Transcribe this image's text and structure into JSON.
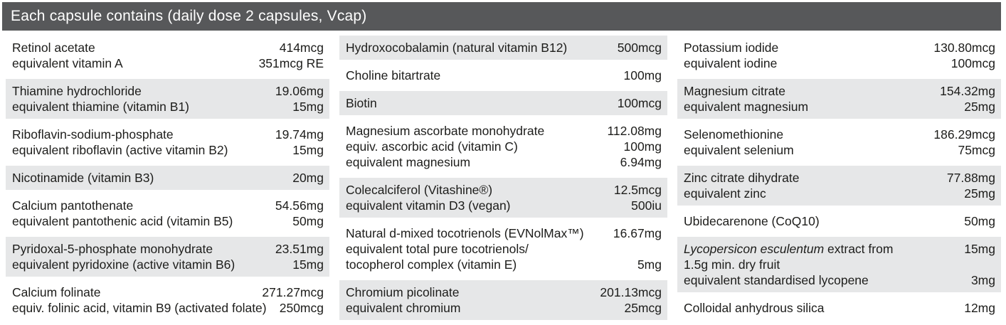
{
  "header": {
    "title": "Each capsule contains (daily dose 2 capsules, Vcap)"
  },
  "colors": {
    "header_bg": "#57585a",
    "header_text": "#ffffff",
    "stripe_bg": "#e6e7e8",
    "text": "#1d1d1b",
    "page_bg": "#ffffff"
  },
  "columns": [
    {
      "rows": [
        {
          "lines": [
            {
              "text": "Retinol acetate",
              "value": "414mcg"
            },
            {
              "text": "equivalent vitamin A",
              "value": "351mcg RE"
            }
          ]
        },
        {
          "lines": [
            {
              "text": "Thiamine hydrochloride",
              "value": "19.06mg"
            },
            {
              "text": "equivalent thiamine (vitamin B1)",
              "value": "15mg"
            }
          ]
        },
        {
          "lines": [
            {
              "text": "Riboflavin-sodium-phosphate",
              "value": "19.74mg"
            },
            {
              "text": "equivalent riboflavin (active vitamin B2)",
              "value": "15mg"
            }
          ]
        },
        {
          "lines": [
            {
              "text": "Nicotinamide (vitamin B3)",
              "value": "20mg"
            }
          ]
        },
        {
          "lines": [
            {
              "text": "Calcium pantothenate",
              "value": "54.56mg"
            },
            {
              "text": "equivalent pantothenic acid (vitamin B5)",
              "value": "50mg"
            }
          ]
        },
        {
          "lines": [
            {
              "text": "Pyridoxal-5-phosphate monohydrate",
              "value": "23.51mg"
            },
            {
              "text": "equivalent pyridoxine (active vitamin B6)",
              "value": "15mg"
            }
          ]
        },
        {
          "lines": [
            {
              "text": "Calcium folinate",
              "value": "271.27mcg"
            },
            {
              "text": "equiv. folinic acid, vitamin B9 (activated folate)",
              "value": "250mcg"
            }
          ]
        }
      ]
    },
    {
      "rows": [
        {
          "lines": [
            {
              "text": "Hydroxocobalamin (natural vitamin B12)",
              "value": "500mcg"
            }
          ]
        },
        {
          "lines": [
            {
              "text": "Choline bitartrate",
              "value": "100mg"
            }
          ]
        },
        {
          "lines": [
            {
              "text": "Biotin",
              "value": "100mcg"
            }
          ]
        },
        {
          "lines": [
            {
              "text": "Magnesium ascorbate monohydrate",
              "value": "112.08mg"
            },
            {
              "text": "equiv. ascorbic acid (vitamin C)",
              "value": "100mg"
            },
            {
              "text": "equivalent magnesium",
              "value": "6.94mg"
            }
          ]
        },
        {
          "lines": [
            {
              "text": "Colecalciferol (Vitashine®)",
              "value": "12.5mcg"
            },
            {
              "text": "equivalent vitamin D3 (vegan)",
              "value": "500iu"
            }
          ]
        },
        {
          "lines": [
            {
              "text": "Natural d-mixed tocotrienols (EVNolMax™)",
              "value": "16.67mg"
            },
            {
              "text": "equivalent total pure tocotrienols/",
              "value": ""
            },
            {
              "text": "tocopherol complex (vitamin E)",
              "value": "5mg"
            }
          ]
        },
        {
          "lines": [
            {
              "text": "Chromium picolinate",
              "value": "201.13mcg"
            },
            {
              "text": "equivalent chromium",
              "value": "25mcg"
            }
          ]
        }
      ]
    },
    {
      "rows": [
        {
          "lines": [
            {
              "text": "Potassium iodide",
              "value": "130.80mcg"
            },
            {
              "text": "equivalent iodine",
              "value": "100mcg"
            }
          ]
        },
        {
          "lines": [
            {
              "text": "Magnesium citrate",
              "value": "154.32mg"
            },
            {
              "text": "equivalent magnesium",
              "value": "25mg"
            }
          ]
        },
        {
          "lines": [
            {
              "text": "Selenomethionine",
              "value": "186.29mcg"
            },
            {
              "text": "equivalent selenium",
              "value": "75mcg"
            }
          ]
        },
        {
          "lines": [
            {
              "text": "Zinc citrate dihydrate",
              "value": "77.88mg"
            },
            {
              "text": "equivalent zinc",
              "value": "25mg"
            }
          ]
        },
        {
          "lines": [
            {
              "text": "Ubidecarenone (CoQ10)",
              "value": "50mg"
            }
          ]
        },
        {
          "lines": [
            {
              "em": "Lycopersicon esculentum",
              "text": " extract from",
              "value": "15mg"
            },
            {
              "text": "1.5g min. dry fruit",
              "value": ""
            },
            {
              "text": "equivalent standardised lycopene",
              "value": "3mg"
            }
          ]
        },
        {
          "lines": [
            {
              "text": "Colloidal anhydrous silica",
              "value": "12mg"
            }
          ]
        }
      ]
    }
  ]
}
